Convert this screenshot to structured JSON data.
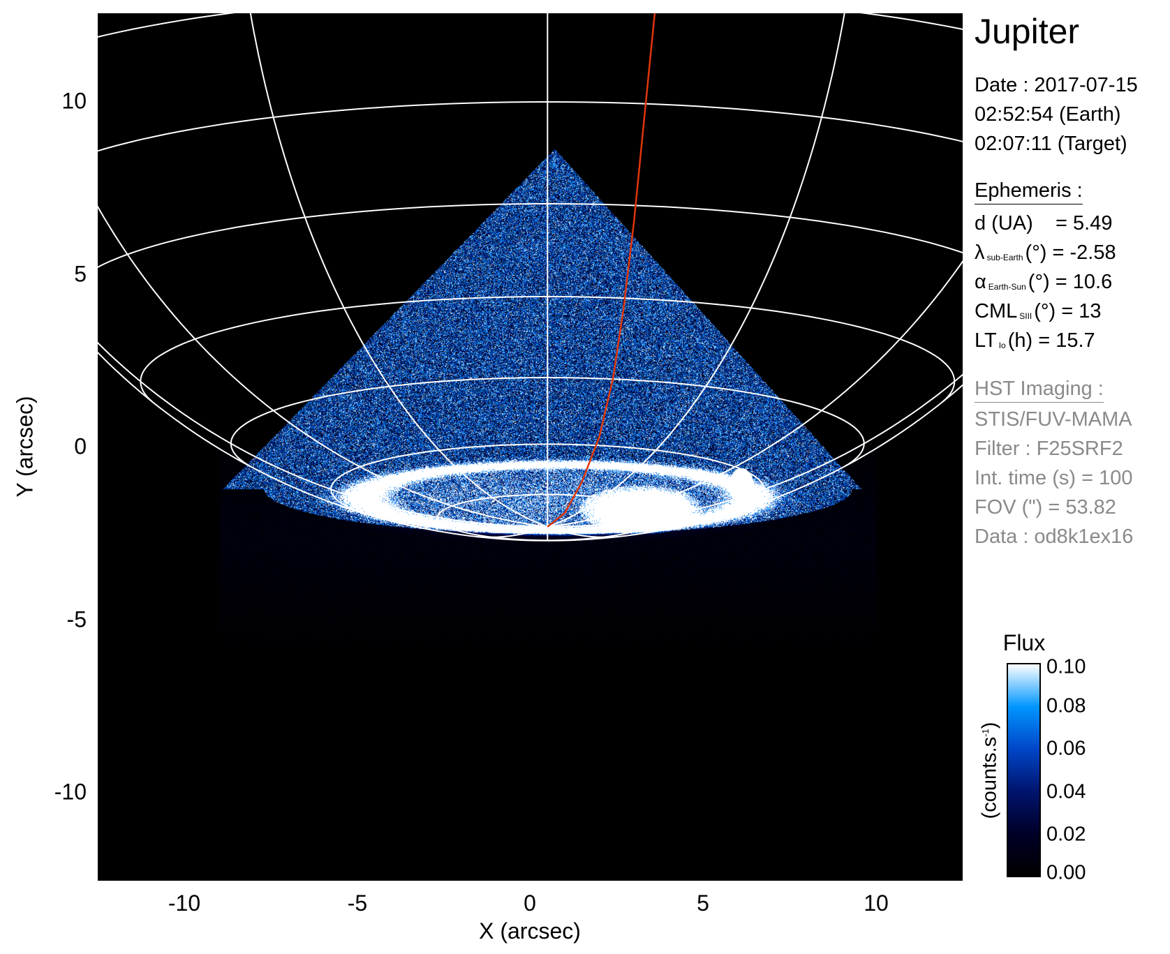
{
  "chart_data": {
    "type": "heatmap",
    "description_of_marks": "HST STIS FUV image of Jupiter's aurora with planetographic grid overlay and red footprint line",
    "xlabel": "X (arcsec)",
    "ylabel": "Y (arcsec)",
    "xlim": [
      -12.5,
      12.5
    ],
    "ylim": [
      -12.5,
      12.5
    ],
    "x_ticks": [
      "-10",
      "-5",
      "0",
      "5",
      "10"
    ],
    "x_tick_values": [
      -10,
      -5,
      0,
      5,
      10
    ],
    "y_ticks": [
      "10",
      "5",
      "0",
      "-5",
      "-10"
    ],
    "y_tick_values": [
      10,
      5,
      0,
      -5,
      -10
    ],
    "grid_color": "#ffffff",
    "footprint_line_color": "#e0360a",
    "footprint_line": {
      "x": [
        0.5,
        1.0,
        1.5,
        2.0,
        2.4,
        2.7,
        3.0,
        3.3,
        3.6
      ],
      "y": [
        -2.3,
        -1.9,
        -1.0,
        0.3,
        2.0,
        4.0,
        6.5,
        9.5,
        12.5
      ]
    },
    "colorbar": {
      "title": "Flux",
      "label": "(counts.s",
      "label_sup": "-1",
      "label_end": ")",
      "range": [
        0.0,
        0.1
      ],
      "ticks": [
        "0.10",
        "0.08",
        "0.06",
        "0.04",
        "0.02",
        "0.00"
      ],
      "tick_values": [
        0.1,
        0.08,
        0.06,
        0.04,
        0.02,
        0.0
      ],
      "colormap": [
        "#000000",
        "#000028",
        "#00146e",
        "#0046c8",
        "#0096ff",
        "#ffffff"
      ]
    }
  },
  "panel": {
    "title": "Jupiter",
    "date": "Date : 2017-07-15",
    "time_earth": "02:52:54 (Earth)",
    "time_target": "02:07:11 (Target)",
    "ephemeris_header": "Ephemeris :",
    "ephemeris": [
      {
        "label": "d (UA)",
        "sub": "",
        "rest": "    = 5.49"
      },
      {
        "label": "λ",
        "sub": "sub-Earth",
        "rest": "(°) = -2.58"
      },
      {
        "label": "α",
        "sub": "Earth-Sun",
        "rest": "(°) = 10.6"
      },
      {
        "label": "CML",
        "sub": "SIII",
        "rest": "(°) = 13"
      },
      {
        "label": "LT",
        "sub": "Io",
        "rest": "(h) = 15.7"
      }
    ],
    "hst_header": "HST Imaging :",
    "hst": [
      "STIS/FUV-MAMA",
      "Filter : F25SRF2",
      "Int. time (s) = 100",
      "FOV (\") = 53.82",
      "Data : od8k1ex16"
    ]
  }
}
